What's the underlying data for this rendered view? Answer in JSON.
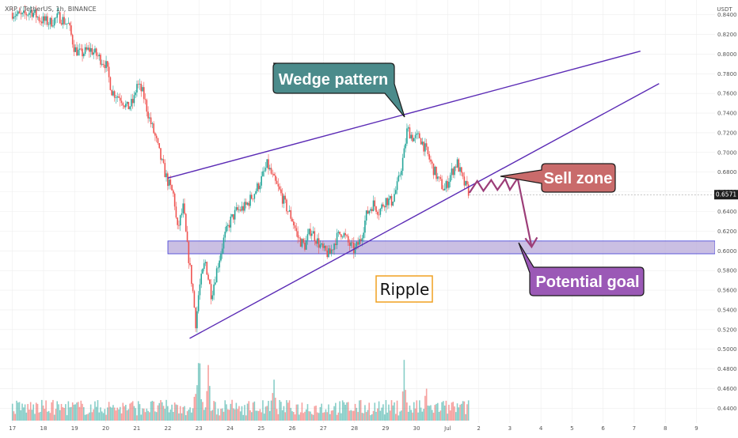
{
  "header": {
    "symbol_line": "XRP / TetherUS, 1h, BINANCE"
  },
  "axis": {
    "currency": "USDT",
    "current_price": "0.6571"
  },
  "annotations": {
    "wedge_label": "Wedge pattern",
    "sell_label": "Sell zone",
    "goal_label": "Potential goal",
    "asset_label": "Ripple"
  },
  "colors": {
    "background": "#ffffff",
    "grid": "#eeeeee",
    "up_candle": "#26a69a",
    "down_candle": "#ef5350",
    "wedge_lines": "#5b2bb5",
    "zone_fill": "#b8a9d9",
    "zone_border": "#3d3bd6",
    "wedge_callout": "#4b8b8b",
    "sell_callout": "#c96b6b",
    "goal_callout": "#9b59b6",
    "projection": "#9c3d78",
    "current_price_tag": "#1e1e1e"
  },
  "chart_data": {
    "type": "candlestick",
    "y_ticks": [
      "0.8400",
      "0.8200",
      "0.8000",
      "0.7800",
      "0.7600",
      "0.7400",
      "0.7200",
      "0.7000",
      "0.6800",
      "0.6600",
      "0.6400",
      "0.6200",
      "0.6000",
      "0.5800",
      "0.5600",
      "0.5400",
      "0.5200",
      "0.5000",
      "0.4800",
      "0.4600",
      "0.4400"
    ],
    "ylim": [
      0.425,
      0.855
    ],
    "x_ticks": [
      "17",
      "18",
      "19",
      "20",
      "21",
      "22",
      "23",
      "24",
      "25",
      "26",
      "27",
      "28",
      "29",
      "30",
      "Jul",
      "2",
      "3",
      "4",
      "5",
      "6",
      "7",
      "8",
      "9"
    ],
    "x_tick_days": [
      0,
      1,
      2,
      3,
      4,
      5,
      6,
      7,
      8,
      9,
      10,
      11,
      12,
      13,
      14,
      15,
      16,
      17,
      18,
      19,
      20,
      21,
      22
    ],
    "xlim": [
      -0.4,
      22.6
    ],
    "close_path": [
      [
        0,
        0.842
      ],
      [
        0.3,
        0.838
      ],
      [
        0.6,
        0.844
      ],
      [
        0.9,
        0.835
      ],
      [
        1.2,
        0.832
      ],
      [
        1.5,
        0.838
      ],
      [
        1.8,
        0.83
      ],
      [
        2.0,
        0.805
      ],
      [
        2.2,
        0.8
      ],
      [
        2.5,
        0.805
      ],
      [
        2.8,
        0.796
      ],
      [
        3.0,
        0.79
      ],
      [
        3.2,
        0.762
      ],
      [
        3.5,
        0.755
      ],
      [
        3.7,
        0.745
      ],
      [
        3.9,
        0.752
      ],
      [
        4.0,
        0.77
      ],
      [
        4.2,
        0.76
      ],
      [
        4.4,
        0.735
      ],
      [
        4.6,
        0.715
      ],
      [
        4.8,
        0.69
      ],
      [
        5.0,
        0.67
      ],
      [
        5.2,
        0.655
      ],
      [
        5.3,
        0.62
      ],
      [
        5.5,
        0.645
      ],
      [
        5.6,
        0.61
      ],
      [
        5.8,
        0.56
      ],
      [
        5.9,
        0.525
      ],
      [
        6.0,
        0.56
      ],
      [
        6.2,
        0.59
      ],
      [
        6.4,
        0.555
      ],
      [
        6.6,
        0.585
      ],
      [
        6.8,
        0.612
      ],
      [
        7.0,
        0.63
      ],
      [
        7.2,
        0.64
      ],
      [
        7.5,
        0.645
      ],
      [
        7.8,
        0.66
      ],
      [
        8.0,
        0.672
      ],
      [
        8.2,
        0.688
      ],
      [
        8.4,
        0.672
      ],
      [
        8.6,
        0.66
      ],
      [
        8.8,
        0.645
      ],
      [
        9.0,
        0.632
      ],
      [
        9.2,
        0.612
      ],
      [
        9.4,
        0.605
      ],
      [
        9.6,
        0.622
      ],
      [
        9.8,
        0.61
      ],
      [
        10.0,
        0.6
      ],
      [
        10.2,
        0.596
      ],
      [
        10.4,
        0.612
      ],
      [
        10.6,
        0.62
      ],
      [
        10.8,
        0.608
      ],
      [
        11.0,
        0.6
      ],
      [
        11.2,
        0.612
      ],
      [
        11.4,
        0.638
      ],
      [
        11.6,
        0.648
      ],
      [
        11.8,
        0.64
      ],
      [
        12.0,
        0.652
      ],
      [
        12.2,
        0.65
      ],
      [
        12.4,
        0.668
      ],
      [
        12.6,
        0.7
      ],
      [
        12.7,
        0.724
      ],
      [
        12.9,
        0.714
      ],
      [
        13.1,
        0.716
      ],
      [
        13.3,
        0.702
      ],
      [
        13.5,
        0.686
      ],
      [
        13.7,
        0.672
      ],
      [
        13.9,
        0.662
      ],
      [
        14.1,
        0.678
      ],
      [
        14.3,
        0.69
      ],
      [
        14.5,
        0.67
      ],
      [
        14.7,
        0.659
      ]
    ],
    "wedge_upper": [
      [
        5.0,
        0.674
      ],
      [
        12.5,
        0.731
      ],
      [
        20.2,
        0.803
      ]
    ],
    "wedge_lower": [
      [
        5.7,
        0.511
      ],
      [
        11.0,
        0.6
      ],
      [
        20.8,
        0.77
      ]
    ],
    "target_zone": [
      0.597,
      0.61
    ],
    "projection_path": [
      [
        14.7,
        0.659
      ],
      [
        14.95,
        0.671
      ],
      [
        15.15,
        0.661
      ],
      [
        15.4,
        0.672
      ],
      [
        15.6,
        0.662
      ],
      [
        15.85,
        0.673
      ],
      [
        16.0,
        0.662
      ],
      [
        16.25,
        0.674
      ],
      [
        16.7,
        0.604
      ]
    ],
    "volume_peaks": [
      [
        5.9,
        0.5
      ],
      [
        6.0,
        1.0
      ],
      [
        6.3,
        0.65
      ],
      [
        8.4,
        0.55
      ],
      [
        12.6,
        0.75
      ],
      [
        13.3,
        0.48
      ]
    ]
  }
}
